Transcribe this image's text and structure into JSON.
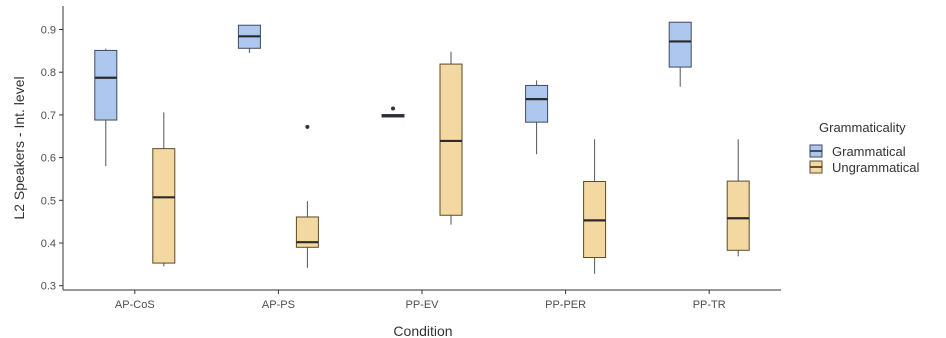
{
  "chart_data": {
    "type": "box",
    "xlabel": "Condition",
    "ylabel": "L2 Speakers - Int. level",
    "ylim": [
      0.29,
      0.955
    ],
    "yticks": [
      "0.3",
      "0.4",
      "0.5",
      "0.6",
      "0.7",
      "0.8",
      "0.9"
    ],
    "grid": false,
    "legend_position": "right",
    "legend": {
      "title": "Grammaticality",
      "entries": [
        {
          "label": "Grammatical",
          "color": "#aec7ef"
        },
        {
          "label": "Ungrammatical",
          "color": "#f3d9a1"
        }
      ]
    },
    "categories": [
      "AP-CoS",
      "AP-PS",
      "PP-EV",
      "PP-PER",
      "PP-TR"
    ],
    "series": [
      {
        "name": "Grammatical",
        "fill": "#aec7ef",
        "stroke": "#3e4a63",
        "boxes": [
          {
            "whisker_low": 0.58,
            "q1": 0.688,
            "median": 0.787,
            "q3": 0.851,
            "whisker_high": 0.855,
            "outliers": []
          },
          {
            "whisker_low": 0.845,
            "q1": 0.856,
            "median": 0.884,
            "q3": 0.91,
            "whisker_high": 0.91,
            "outliers": []
          },
          {
            "whisker_low": 0.694,
            "q1": 0.695,
            "median": 0.698,
            "q3": 0.701,
            "whisker_high": 0.701,
            "outliers": [
              0.715
            ]
          },
          {
            "whisker_low": 0.608,
            "q1": 0.683,
            "median": 0.737,
            "q3": 0.769,
            "whisker_high": 0.781,
            "outliers": []
          },
          {
            "whisker_low": 0.766,
            "q1": 0.812,
            "median": 0.872,
            "q3": 0.917,
            "whisker_high": 0.917,
            "outliers": []
          }
        ]
      },
      {
        "name": "Ungrammatical",
        "fill": "#f3d9a1",
        "stroke": "#5b4a2a",
        "boxes": [
          {
            "whisker_low": 0.345,
            "q1": 0.353,
            "median": 0.507,
            "q3": 0.621,
            "whisker_high": 0.706,
            "outliers": []
          },
          {
            "whisker_low": 0.342,
            "q1": 0.39,
            "median": 0.402,
            "q3": 0.461,
            "whisker_high": 0.498,
            "outliers": [
              0.672
            ]
          },
          {
            "whisker_low": 0.443,
            "q1": 0.465,
            "median": 0.639,
            "q3": 0.819,
            "whisker_high": 0.848,
            "outliers": []
          },
          {
            "whisker_low": 0.328,
            "q1": 0.366,
            "median": 0.453,
            "q3": 0.544,
            "whisker_high": 0.643,
            "outliers": []
          },
          {
            "whisker_low": 0.369,
            "q1": 0.383,
            "median": 0.458,
            "q3": 0.545,
            "whisker_high": 0.643,
            "outliers": []
          }
        ]
      }
    ]
  }
}
